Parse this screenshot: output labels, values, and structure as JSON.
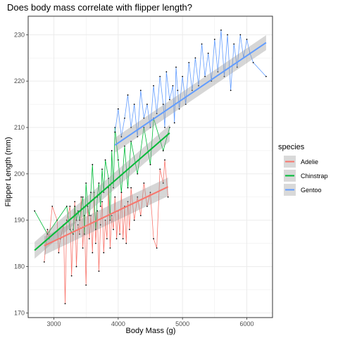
{
  "chart_data": {
    "type": "scatter",
    "title": "Does body mass correlate with flipper length?",
    "xlabel": "Body Mass (g)",
    "ylabel": "Flipper Length (mm)",
    "xlim": [
      2600,
      6400
    ],
    "ylim": [
      169,
      234
    ],
    "x_ticks": [
      3000,
      4000,
      5000,
      6000
    ],
    "y_ticks": [
      170,
      180,
      190,
      200,
      210,
      220,
      230
    ],
    "grid": true,
    "legend": {
      "title": "species",
      "position": "right"
    },
    "series": [
      {
        "name": "Adelie",
        "color": "#F8766D",
        "fit": {
          "x": [
            2850,
            4775
          ],
          "y": [
            184.5,
            197.2
          ],
          "se_band": 2.0
        },
        "points": [
          [
            2850,
            181
          ],
          [
            2900,
            188
          ],
          [
            2925,
            186
          ],
          [
            2975,
            193
          ],
          [
            3050,
            190
          ],
          [
            3075,
            183
          ],
          [
            3100,
            186
          ],
          [
            3150,
            189
          ],
          [
            3175,
            172
          ],
          [
            3200,
            190
          ],
          [
            3250,
            193
          ],
          [
            3275,
            178
          ],
          [
            3300,
            188
          ],
          [
            3325,
            194
          ],
          [
            3350,
            180
          ],
          [
            3375,
            189
          ],
          [
            3400,
            187
          ],
          [
            3425,
            195
          ],
          [
            3450,
            184
          ],
          [
            3475,
            191
          ],
          [
            3500,
            176
          ],
          [
            3525,
            193
          ],
          [
            3550,
            186
          ],
          [
            3575,
            191
          ],
          [
            3600,
            183
          ],
          [
            3625,
            196
          ],
          [
            3650,
            185
          ],
          [
            3675,
            192
          ],
          [
            3700,
            179
          ],
          [
            3725,
            189
          ],
          [
            3750,
            194
          ],
          [
            3775,
            183
          ],
          [
            3800,
            190
          ],
          [
            3825,
            186
          ],
          [
            3850,
            197
          ],
          [
            3875,
            184
          ],
          [
            3900,
            191
          ],
          [
            3925,
            188
          ],
          [
            3950,
            195
          ],
          [
            3975,
            186
          ],
          [
            4000,
            192
          ],
          [
            4025,
            187
          ],
          [
            4050,
            196
          ],
          [
            4075,
            186
          ],
          [
            4100,
            193
          ],
          [
            4125,
            185
          ],
          [
            4150,
            194
          ],
          [
            4175,
            188
          ],
          [
            4200,
            197
          ],
          [
            4250,
            190
          ],
          [
            4300,
            195
          ],
          [
            4350,
            191
          ],
          [
            4400,
            198
          ],
          [
            4450,
            193
          ],
          [
            4500,
            196
          ],
          [
            4550,
            186
          ],
          [
            4600,
            184
          ],
          [
            4650,
            201
          ],
          [
            4700,
            198
          ],
          [
            4725,
            203
          ],
          [
            4775,
            195
          ]
        ]
      },
      {
        "name": "Chinstrap",
        "color": "#00BA38",
        "fit": {
          "x": [
            2700,
            4800
          ],
          "y": [
            183.5,
            208.8
          ],
          "se_band": 1.8
        },
        "points": [
          [
            2700,
            192
          ],
          [
            2900,
            187
          ],
          [
            3200,
            193
          ],
          [
            3250,
            188
          ],
          [
            3300,
            187
          ],
          [
            3325,
            193
          ],
          [
            3350,
            190
          ],
          [
            3375,
            192
          ],
          [
            3400,
            190
          ],
          [
            3450,
            195
          ],
          [
            3475,
            187
          ],
          [
            3500,
            198
          ],
          [
            3525,
            193
          ],
          [
            3550,
            191
          ],
          [
            3575,
            196
          ],
          [
            3600,
            202
          ],
          [
            3650,
            188
          ],
          [
            3675,
            195
          ],
          [
            3700,
            198
          ],
          [
            3725,
            193
          ],
          [
            3750,
            201
          ],
          [
            3775,
            196
          ],
          [
            3800,
            203
          ],
          [
            3850,
            199
          ],
          [
            3875,
            190
          ],
          [
            3900,
            205
          ],
          [
            3925,
            197
          ],
          [
            3950,
            210
          ],
          [
            4000,
            203
          ],
          [
            4050,
            196
          ],
          [
            4100,
            206
          ],
          [
            4150,
            197
          ],
          [
            4200,
            207
          ],
          [
            4300,
            200
          ],
          [
            4400,
            210
          ],
          [
            4500,
            202
          ],
          [
            4550,
            212
          ],
          [
            4700,
            205
          ],
          [
            4800,
            210
          ]
        ]
      },
      {
        "name": "Gentoo",
        "color": "#619CFF",
        "fit": {
          "x": [
            3950,
            6300
          ],
          "y": [
            206.2,
            228.3
          ],
          "se_band": 1.6
        },
        "points": [
          [
            3950,
            209
          ],
          [
            4000,
            214
          ],
          [
            4050,
            208
          ],
          [
            4100,
            212
          ],
          [
            4150,
            217
          ],
          [
            4200,
            210
          ],
          [
            4250,
            215
          ],
          [
            4300,
            208
          ],
          [
            4350,
            218
          ],
          [
            4400,
            212
          ],
          [
            4450,
            215
          ],
          [
            4500,
            210
          ],
          [
            4550,
            219
          ],
          [
            4600,
            213
          ],
          [
            4650,
            221
          ],
          [
            4700,
            215
          ],
          [
            4725,
            210
          ],
          [
            4750,
            222
          ],
          [
            4800,
            216
          ],
          [
            4850,
            219
          ],
          [
            4875,
            211
          ],
          [
            4900,
            223
          ],
          [
            4925,
            218
          ],
          [
            4950,
            214
          ],
          [
            5000,
            221
          ],
          [
            5050,
            215
          ],
          [
            5100,
            224
          ],
          [
            5150,
            218
          ],
          [
            5200,
            225
          ],
          [
            5250,
            219
          ],
          [
            5300,
            228
          ],
          [
            5350,
            221
          ],
          [
            5400,
            226
          ],
          [
            5450,
            220
          ],
          [
            5500,
            229
          ],
          [
            5550,
            222
          ],
          [
            5600,
            231
          ],
          [
            5650,
            221
          ],
          [
            5700,
            230
          ],
          [
            5750,
            218
          ],
          [
            5800,
            228
          ],
          [
            5850,
            223
          ],
          [
            5900,
            230
          ],
          [
            5950,
            225
          ],
          [
            6000,
            229
          ],
          [
            6050,
            226
          ],
          [
            6100,
            224
          ],
          [
            6300,
            221
          ]
        ]
      }
    ]
  }
}
